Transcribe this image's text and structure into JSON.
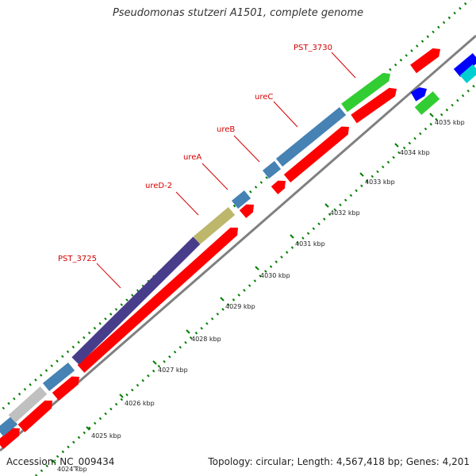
{
  "title": "Pseudomonas stutzeri A1501, complete genome",
  "accession": "Accession: NC_009434",
  "topology": "Topology: circular; Length: 4,567,418 bp; Genes: 4,201",
  "colors": {
    "forward_gene": "#ff0000",
    "reverse_gene_blue": "#4682b4",
    "reverse_gene_purple": "#483d8b",
    "reverse_gene_khaki": "#bdb76b",
    "reverse_gene_gray": "#c0c0c0",
    "gene_green": "#32cd32",
    "gene_darkblue": "#0000ff",
    "gene_cyan": "#00ced1",
    "label": "#d40000",
    "backbone": "#808080",
    "tick": "#008000"
  },
  "gene_labels": [
    "PST_3730",
    "ureC",
    "ureB",
    "ureA",
    "ureD-2",
    "PST_3725"
  ],
  "tick_labels": [
    "4035 kbp",
    "4034 kbp",
    "4033 kbp",
    "4032 kbp",
    "4031 kbp",
    "4030 kbp",
    "4029 kbp",
    "4028 kbp",
    "4027 kbp",
    "4026 kbp",
    "4025 kbp",
    "4024 kbp"
  ]
}
